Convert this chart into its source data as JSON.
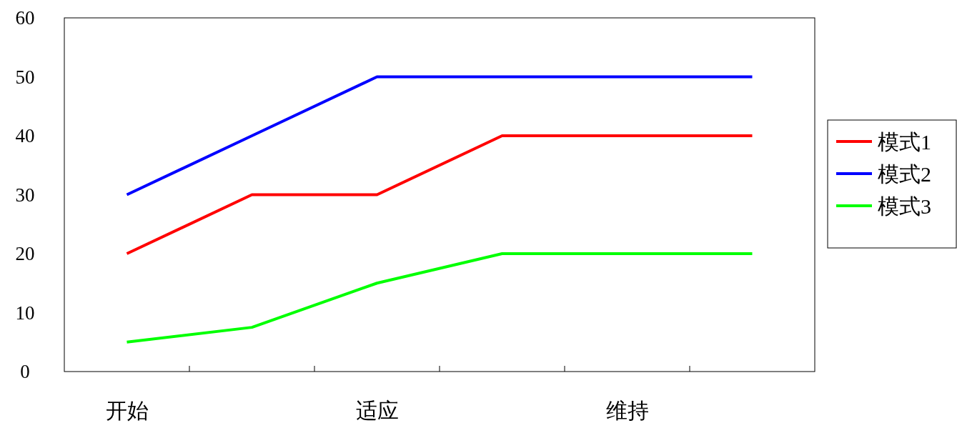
{
  "chart_data": {
    "type": "line",
    "categories": [
      "开始",
      null,
      "适应",
      null,
      "维持",
      null
    ],
    "series": [
      {
        "name": "模式1",
        "color": "#ff0000",
        "values": [
          20,
          30,
          30,
          40,
          40,
          40
        ]
      },
      {
        "name": "模式2",
        "color": "#0000ff",
        "values": [
          30,
          40,
          50,
          50,
          50,
          50
        ]
      },
      {
        "name": "模式3",
        "color": "#00ff00",
        "values": [
          5,
          7.5,
          15,
          20,
          20,
          20
        ]
      }
    ],
    "ylim": [
      0,
      60
    ],
    "yticks": [
      0,
      10,
      20,
      30,
      40,
      50,
      60
    ],
    "grid": false,
    "legend": "right",
    "marker": "none",
    "line_style": "solid"
  }
}
